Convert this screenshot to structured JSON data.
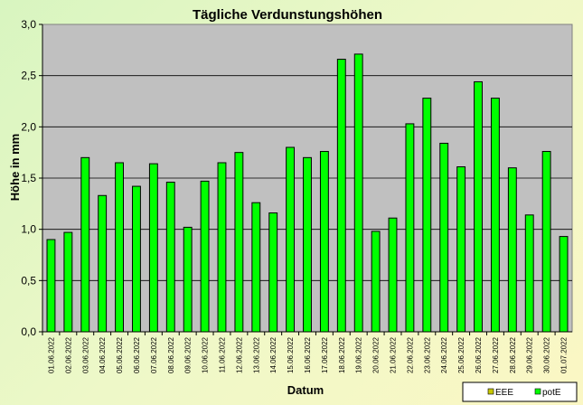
{
  "chart_data": {
    "type": "bar",
    "title": "Tägliche Verdunstungshöhen",
    "xlabel": "Datum",
    "ylabel": "Höhe in mm",
    "ylim": [
      0,
      3.0
    ],
    "yticks": [
      "0,0",
      "0,5",
      "1,0",
      "1,5",
      "2,0",
      "2,5",
      "3,0"
    ],
    "ytick_values": [
      0,
      0.5,
      1.0,
      1.5,
      2.0,
      2.5,
      3.0
    ],
    "grid": true,
    "legend_position": "bottom-right",
    "plot_background": "#c0c0c0",
    "categories": [
      "01.06.2022",
      "02.06.2022",
      "03.06.2022",
      "04.06.2022",
      "05.06.2022",
      "06.06.2022",
      "07.06.2022",
      "08.06.2022",
      "09.06.2022",
      "10.06.2022",
      "11.06.2022",
      "12.06.2022",
      "13.06.2022",
      "14.06.2022",
      "15.06.2022",
      "16.06.2022",
      "17.06.2022",
      "18.06.2022",
      "19.06.2022",
      "20.06.2022",
      "21.06.2022",
      "22.06.2022",
      "23.06.2022",
      "24.06.2022",
      "25.06.2022",
      "26.06.2022",
      "27.06.2022",
      "28.06.2022",
      "29.06.2022",
      "30.06.2022",
      "01.07.2022"
    ],
    "legend": [
      {
        "name": "EEE",
        "color": "#c8c800"
      },
      {
        "name": "potE",
        "color": "#00ff00"
      }
    ],
    "series": [
      {
        "name": "potE",
        "color": "#00ff00",
        "values": [
          0.9,
          0.97,
          1.7,
          1.33,
          1.65,
          1.42,
          1.64,
          1.46,
          1.02,
          1.47,
          1.65,
          1.75,
          1.26,
          1.16,
          1.8,
          1.7,
          1.76,
          2.66,
          2.71,
          0.98,
          1.11,
          2.03,
          2.28,
          1.84,
          1.61,
          2.44,
          2.28,
          1.6,
          1.14,
          1.76,
          0.93
        ]
      }
    ]
  }
}
